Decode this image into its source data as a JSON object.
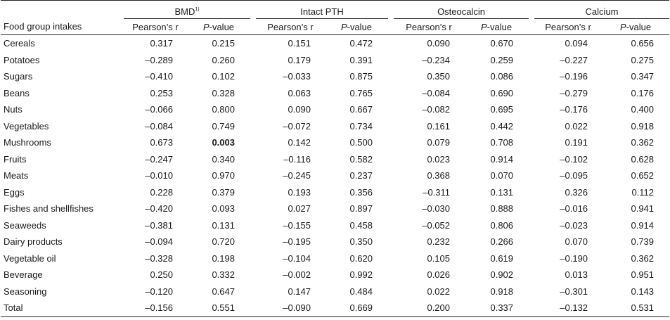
{
  "header": {
    "first_col_label": "Food group intakes",
    "groups": [
      {
        "label": "BMD",
        "sup": "1)"
      },
      {
        "label": "Intact PTH",
        "sup": ""
      },
      {
        "label": "Osteocalcin",
        "sup": ""
      },
      {
        "label": "Calcium",
        "sup": ""
      }
    ],
    "r_label": "Pearson’s r",
    "p_label_italic": "P",
    "p_label_rest": "-value"
  },
  "rows": [
    {
      "label": "Cereals",
      "values": [
        "0.317",
        "0.215",
        "0.151",
        "0.472",
        "0.090",
        "0.670",
        "0.094",
        "0.656"
      ]
    },
    {
      "label": "Potatoes",
      "values": [
        "–0.289",
        "0.260",
        "0.179",
        "0.391",
        "–0.234",
        "0.259",
        "–0.227",
        "0.275"
      ]
    },
    {
      "label": "Sugars",
      "values": [
        "–0.410",
        "0.102",
        "–0.033",
        "0.875",
        "0.350",
        "0.086",
        "–0.196",
        "0.347"
      ]
    },
    {
      "label": "Beans",
      "values": [
        "0.253",
        "0.328",
        "0.063",
        "0.765",
        "–0.084",
        "0.690",
        "–0.279",
        "0.176"
      ]
    },
    {
      "label": "Nuts",
      "values": [
        "–0.066",
        "0.800",
        "0.090",
        "0.667",
        "–0.082",
        "0.695",
        "–0.176",
        "0.400"
      ]
    },
    {
      "label": "Vegetables",
      "values": [
        "–0.084",
        "0.749",
        "–0.072",
        "0.734",
        "0.161",
        "0.442",
        "0.022",
        "0.918"
      ]
    },
    {
      "label": "Mushrooms",
      "values": [
        "0.673",
        "0.003",
        "0.142",
        "0.500",
        "0.079",
        "0.708",
        "0.191",
        "0.362"
      ]
    },
    {
      "label": "Fruits",
      "values": [
        "–0.247",
        "0.340",
        "–0.116",
        "0.582",
        "0.023",
        "0.914",
        "–0.102",
        "0.628"
      ]
    },
    {
      "label": "Meats",
      "values": [
        "–0.010",
        "0.970",
        "–0.245",
        "0.237",
        "0.368",
        "0.070",
        "–0.095",
        "0.652"
      ]
    },
    {
      "label": "Eggs",
      "values": [
        "0.228",
        "0.379",
        "0.193",
        "0.356",
        "–0.311",
        "0.131",
        "0.326",
        "0.112"
      ]
    },
    {
      "label": "Fishes and shellfishes",
      "values": [
        "–0.420",
        "0.093",
        "0.027",
        "0.897",
        "–0.030",
        "0.888",
        "–0.016",
        "0.941"
      ]
    },
    {
      "label": "Seaweeds",
      "values": [
        "–0.381",
        "0.131",
        "–0.155",
        "0.458",
        "–0.052",
        "0.806",
        "–0.023",
        "0.914"
      ]
    },
    {
      "label": "Dairy products",
      "values": [
        "–0.094",
        "0.720",
        "–0.195",
        "0.350",
        "0.232",
        "0.266",
        "0.070",
        "0.739"
      ]
    },
    {
      "label": "Vegetable oil",
      "values": [
        "–0.328",
        "0.198",
        "–0.104",
        "0.620",
        "0.105",
        "0.619",
        "–0.190",
        "0.362"
      ]
    },
    {
      "label": "Beverage",
      "values": [
        "0.250",
        "0.332",
        "–0.002",
        "0.992",
        "0.026",
        "0.902",
        "0.013",
        "0.951"
      ]
    },
    {
      "label": "Seasoning",
      "values": [
        "–0.120",
        "0.647",
        "0.147",
        "0.484",
        "0.022",
        "0.918",
        "–0.301",
        "0.143"
      ]
    },
    {
      "label": "Total",
      "values": [
        "–0.156",
        "0.551",
        "–0.090",
        "0.669",
        "0.200",
        "0.337",
        "–0.132",
        "0.531"
      ]
    }
  ],
  "bold_cells": [
    {
      "row": 6,
      "col": 1
    }
  ]
}
